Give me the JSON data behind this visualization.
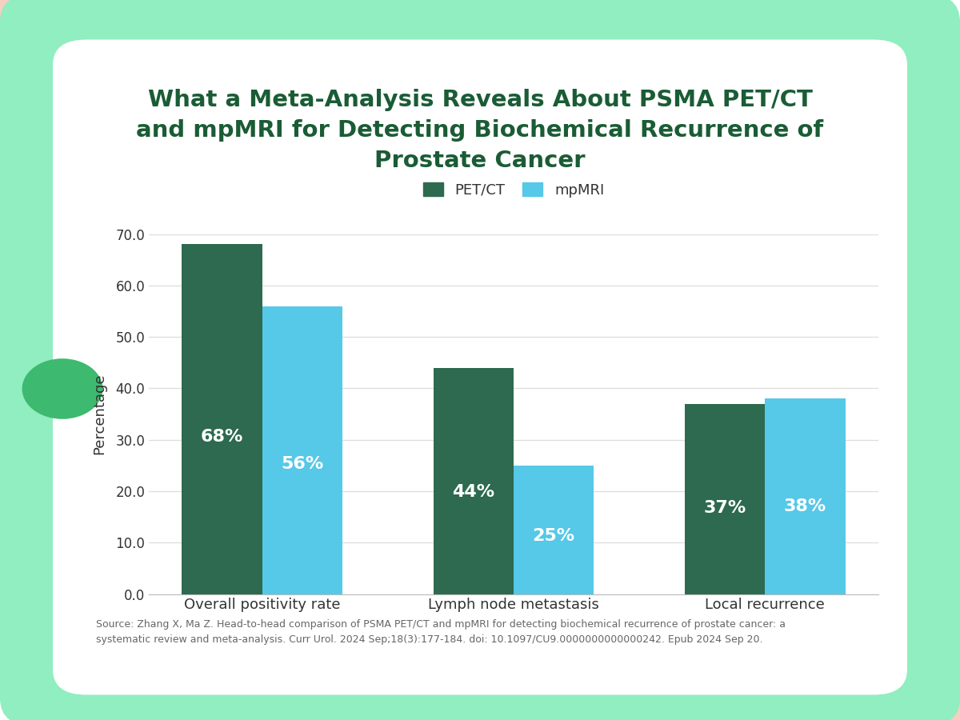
{
  "title_line1": "What a Meta-Analysis Reveals About PSMA PET/CT",
  "title_line2": "and mpMRI for Detecting Biochemical Recurrence of",
  "title_line3": "Prostate Cancer",
  "categories": [
    "Overall positivity rate",
    "Lymph node metastasis",
    "Local recurrence"
  ],
  "petct_values": [
    68,
    44,
    37
  ],
  "mpmri_values": [
    56,
    25,
    38
  ],
  "petct_color": "#2d6a4f",
  "mpmri_color": "#56c8e8",
  "ylabel": "Percentage",
  "ylim": [
    0,
    70
  ],
  "yticks": [
    0.0,
    10.0,
    20.0,
    30.0,
    40.0,
    50.0,
    60.0,
    70.0
  ],
  "legend_petct": "PET/CT",
  "legend_mpmri": "mpMRI",
  "source_text": "Source: Zhang X, Ma Z. Head-to-head comparison of PSMA PET/CT and mpMRI for detecting biochemical recurrence of prostate cancer: a\nsystematic review and meta-analysis. Curr Urol. 2024 Sep;18(3):177-184. doi: 10.1097/CU9.0000000000000242. Epub 2024 Sep 20.",
  "bg_outer": "#90EEC0",
  "bg_inner": "#ffffff",
  "title_color": "#1a5c35",
  "bar_label_color": "#ffffff",
  "source_color": "#666666",
  "grid_color": "#dddddd",
  "bar_width": 0.32,
  "title_fontsize": 21,
  "label_fontsize": 13,
  "tick_fontsize": 12,
  "legend_fontsize": 13,
  "bar_label_fontsize": 16,
  "source_fontsize": 9,
  "deco_circle_color": "#3dba6f",
  "deco_peach": "#f5cfc0"
}
